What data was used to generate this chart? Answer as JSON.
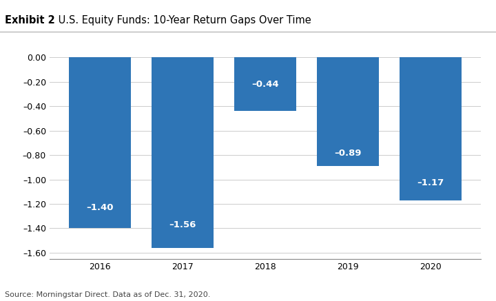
{
  "categories": [
    "2016",
    "2017",
    "2018",
    "2019",
    "2020"
  ],
  "values": [
    -1.4,
    -1.56,
    -0.44,
    -0.89,
    -1.17
  ],
  "bar_color": "#2E75B6",
  "bar_labels": [
    "–1.40",
    "–1.56",
    "–0.44",
    "–0.89",
    "–1.17"
  ],
  "title_bold": "Exhibit 2",
  "title_normal": " U.S. Equity Funds: 10-Year Return Gaps Over Time",
  "ylim": [
    -1.65,
    0.1
  ],
  "yticks": [
    0.0,
    -0.2,
    -0.4,
    -0.6,
    -0.8,
    -1.0,
    -1.2,
    -1.4,
    -1.6
  ],
  "ytick_labels": [
    "0.00",
    "–0.20",
    "–0.40",
    "–0.60",
    "–0.80",
    "–1.00",
    "–1.20",
    "–1.40",
    "–1.60"
  ],
  "source_text": "Source: Morningstar Direct. Data as of Dec. 31, 2020.",
  "background_color": "#ffffff",
  "label_fontsize": 9.5,
  "tick_fontsize": 9,
  "title_fontsize": 10.5,
  "bar_width": 0.75,
  "grid_color": "#cccccc",
  "top_line_color": "#aaaaaa"
}
